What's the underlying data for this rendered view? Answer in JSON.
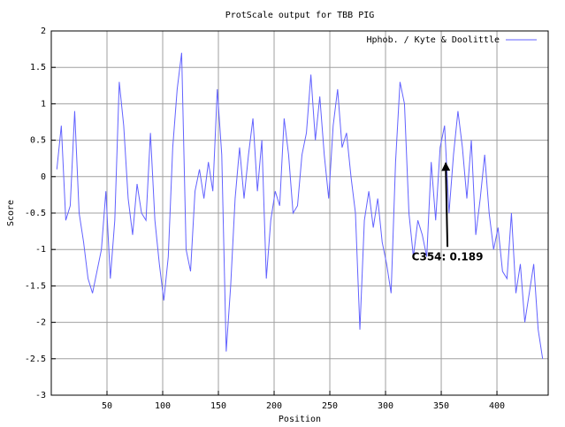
{
  "chart_data": {
    "type": "line",
    "title": "ProtScale output for TBB PIG",
    "xlabel": "Position",
    "ylabel": "Score",
    "x": [
      5,
      9,
      13,
      17,
      21,
      25,
      29,
      33,
      37,
      41,
      45,
      49,
      53,
      57,
      61,
      65,
      69,
      73,
      77,
      81,
      85,
      89,
      93,
      97,
      101,
      105,
      109,
      113,
      117,
      121,
      125,
      129,
      133,
      137,
      141,
      145,
      149,
      153,
      157,
      161,
      165,
      169,
      173,
      177,
      181,
      185,
      189,
      193,
      197,
      201,
      205,
      209,
      213,
      217,
      221,
      225,
      229,
      233,
      237,
      241,
      245,
      249,
      253,
      257,
      261,
      265,
      269,
      273,
      277,
      281,
      285,
      289,
      293,
      297,
      301,
      305,
      309,
      313,
      317,
      321,
      325,
      329,
      333,
      337,
      341,
      345,
      349,
      353,
      357,
      361,
      365,
      369,
      373,
      377,
      381,
      385,
      389,
      393,
      397,
      401,
      405,
      409,
      413,
      417,
      421,
      425,
      429,
      433,
      437,
      441
    ],
    "series": [
      {
        "name": "Hphob. / Kyte & Doolittle",
        "color": "#6262ff",
        "values": [
          0.1,
          0.7,
          -0.6,
          -0.4,
          0.9,
          -0.5,
          -0.9,
          -1.4,
          -1.6,
          -1.3,
          -1.0,
          -0.2,
          -1.4,
          -0.6,
          1.3,
          0.7,
          -0.3,
          -0.8,
          -0.1,
          -0.5,
          -0.6,
          0.6,
          -0.6,
          -1.2,
          -1.7,
          -1.1,
          0.4,
          1.2,
          1.7,
          -1.0,
          -1.3,
          -0.2,
          0.1,
          -0.3,
          0.2,
          -0.2,
          1.2,
          0.3,
          -2.4,
          -1.5,
          -0.3,
          0.4,
          -0.3,
          0.3,
          0.8,
          -0.2,
          0.5,
          -1.4,
          -0.6,
          -0.2,
          -0.4,
          0.8,
          0.3,
          -0.5,
          -0.4,
          0.3,
          0.6,
          1.4,
          0.5,
          1.1,
          0.3,
          -0.3,
          0.7,
          1.2,
          0.4,
          0.6,
          0.0,
          -0.5,
          -2.1,
          -0.6,
          -0.2,
          -0.7,
          -0.3,
          -0.9,
          -1.2,
          -1.6,
          0.2,
          1.3,
          1.0,
          -0.5,
          -1.1,
          -0.6,
          -0.8,
          -1.1,
          0.2,
          -0.6,
          0.4,
          0.7,
          -0.5,
          0.3,
          0.9,
          0.4,
          -0.3,
          0.5,
          -0.8,
          -0.3,
          0.3,
          -0.5,
          -1.0,
          -0.7,
          -1.3,
          -1.4,
          -0.5,
          -1.6,
          -1.2,
          -2.0,
          -1.6,
          -1.2,
          -2.1,
          -2.5
        ]
      }
    ],
    "xlim": [
      0,
      446
    ],
    "xticks": [
      50,
      100,
      150,
      200,
      250,
      300,
      350,
      400
    ],
    "ylim": [
      -3,
      2
    ],
    "yticks": [
      2,
      1.5,
      1,
      0.5,
      0,
      -0.5,
      -1,
      -1.5,
      -2,
      -2.5,
      -3
    ],
    "grid": true,
    "legend": "top-right",
    "annotations": [
      {
        "text": "C354: 0.189",
        "x": 354,
        "y": 0.189
      }
    ]
  }
}
